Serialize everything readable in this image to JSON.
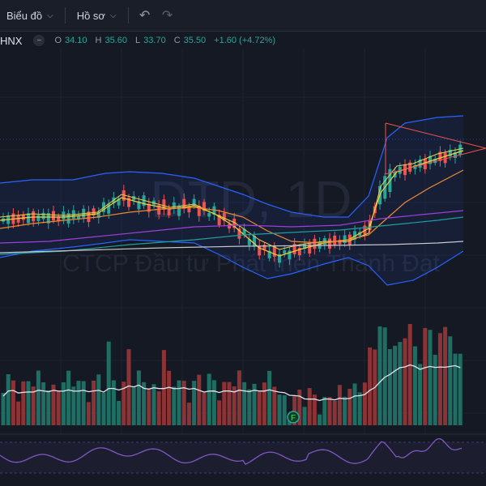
{
  "toolbar": {
    "chart_label": "Biểu đồ",
    "profile_label": "Hồ sơ",
    "undo_icon": "undo-icon",
    "redo_icon": "redo-icon"
  },
  "legend": {
    "symbol": "HNX",
    "open_label": "O",
    "open": "34.10",
    "high_label": "H",
    "high": "35.60",
    "low_label": "L",
    "low": "33.70",
    "close_label": "C",
    "close": "35.50",
    "change": "+1.60 (+4.72%)"
  },
  "watermark": {
    "symbol": "DTD, 1D",
    "company": "CTCP Đầu tư Phát triển Thành Đạt"
  },
  "marker": {
    "label": "F"
  },
  "colors": {
    "up": "#26a69a",
    "down": "#ef5350",
    "background": "#151924",
    "bollinger": "#2962ff",
    "ma_fast": "#f5d033",
    "ma_mid": "#ef8a33",
    "ma_slow1": "#9c3fd8",
    "ma_slow2": "#1e9e9e",
    "ma_long": "#c7c7cc"
  }
}
